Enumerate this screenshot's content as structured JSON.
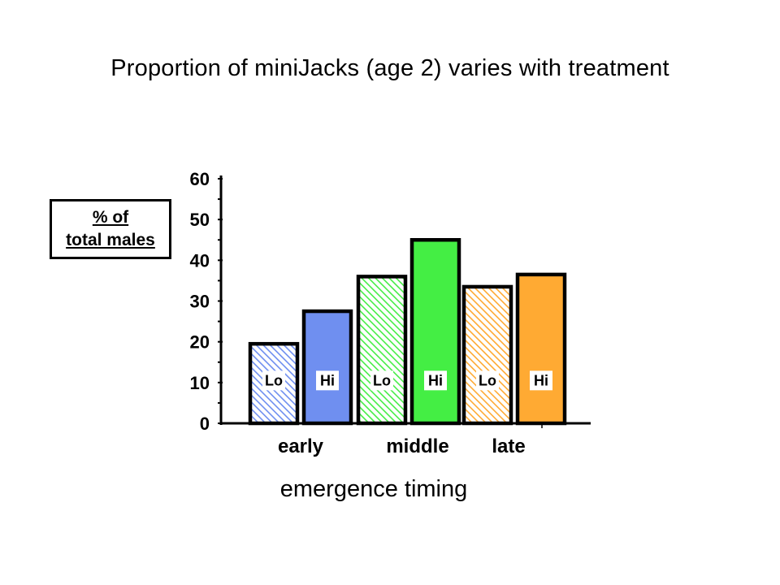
{
  "chart_data": {
    "type": "bar",
    "title": "Proportion of miniJacks (age 2) varies with treatment",
    "ylabel_line1": "% of",
    "ylabel_line2": "total males",
    "xlabel": "emergence timing",
    "ylim": [
      0,
      60
    ],
    "yticks": [
      0,
      10,
      20,
      30,
      40,
      50,
      60
    ],
    "grid": false,
    "categories": [
      "early",
      "middle",
      "late"
    ],
    "bars": [
      {
        "category": "early",
        "label": "Lo",
        "value": 19.5,
        "color": "#6f8ff0",
        "pattern": "hatched"
      },
      {
        "category": "early",
        "label": "Hi",
        "value": 27.5,
        "color": "#6f8ff0",
        "pattern": "solid"
      },
      {
        "category": "middle",
        "label": "Lo",
        "value": 36,
        "color": "#44ee44",
        "pattern": "hatched"
      },
      {
        "category": "middle",
        "label": "Hi",
        "value": 45,
        "color": "#44ee44",
        "pattern": "solid"
      },
      {
        "category": "late",
        "label": "Lo",
        "value": 33.5,
        "color": "#ffaa33",
        "pattern": "hatched"
      },
      {
        "category": "late",
        "label": "Hi",
        "value": 36.5,
        "color": "#ffaa33",
        "pattern": "solid"
      }
    ]
  }
}
